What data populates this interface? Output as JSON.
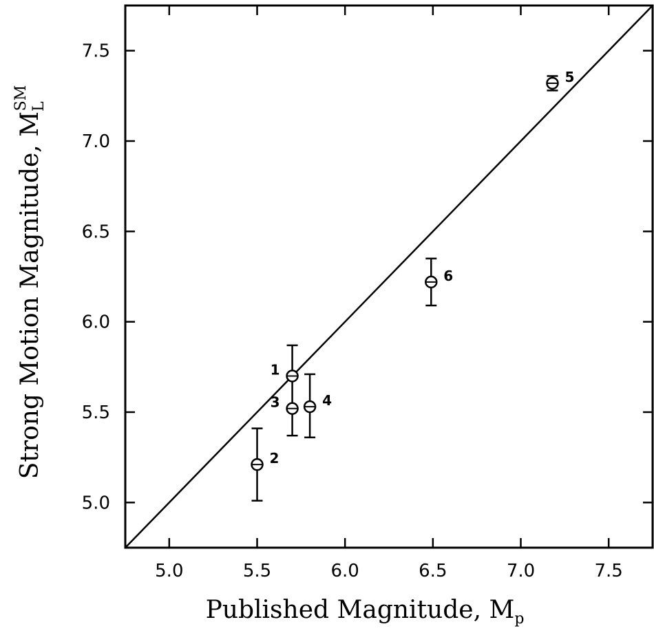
{
  "chart_data": {
    "type": "scatter",
    "title": "",
    "xlabel": "Published Magnitude, M",
    "xlabel_sub": "p",
    "ylabel": "Strong Motion Magnitude, M",
    "ylabel_sub": "L",
    "ylabel_sup": "SM",
    "xlim": [
      4.75,
      7.75
    ],
    "ylim": [
      4.75,
      7.75
    ],
    "x_ticks": [
      5.0,
      5.5,
      6.0,
      6.5,
      7.0,
      7.5
    ],
    "x_tick_labels": [
      "5.0",
      "5.5",
      "6.0",
      "6.5",
      "7.0",
      "7.5"
    ],
    "y_ticks": [
      5.0,
      5.5,
      6.0,
      6.5,
      7.0,
      7.5
    ],
    "y_tick_labels": [
      "5.0",
      "5.5",
      "6.0",
      "6.5",
      "7.0",
      "7.5"
    ],
    "grid": false,
    "reference_line": {
      "from": [
        4.75,
        4.75
      ],
      "to": [
        7.75,
        7.75
      ]
    },
    "points": [
      {
        "label": "1",
        "x": 5.7,
        "y": 5.7,
        "err_low": 5.52,
        "err_high": 5.87,
        "label_side": "left"
      },
      {
        "label": "2",
        "x": 5.5,
        "y": 5.21,
        "err_low": 5.01,
        "err_high": 5.41,
        "label_side": "right"
      },
      {
        "label": "3",
        "x": 5.7,
        "y": 5.52,
        "err_low": 5.37,
        "err_high": 5.52,
        "label_side": "left"
      },
      {
        "label": "4",
        "x": 5.8,
        "y": 5.53,
        "err_low": 5.36,
        "err_high": 5.71,
        "label_side": "right"
      },
      {
        "label": "5",
        "x": 7.18,
        "y": 7.32,
        "err_low": 7.28,
        "err_high": 7.36,
        "label_side": "right"
      },
      {
        "label": "6",
        "x": 6.49,
        "y": 6.22,
        "err_low": 6.09,
        "err_high": 6.35,
        "label_side": "right"
      }
    ]
  }
}
